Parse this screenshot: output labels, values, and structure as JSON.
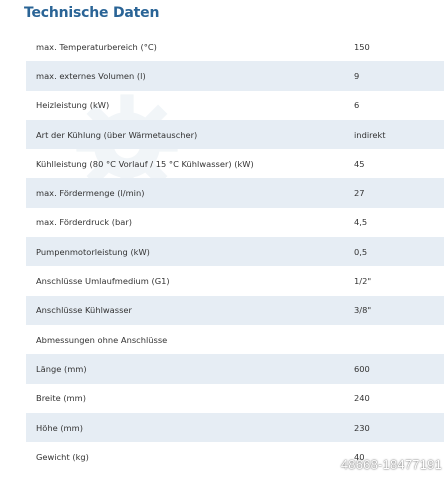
{
  "title": "Technische Daten",
  "rows": [
    {
      "label": "max. Temperaturbereich (°C)",
      "value": "150"
    },
    {
      "label": "max. externes Volumen (l)",
      "value": "9"
    },
    {
      "label": "Heizleistung (kW)",
      "value": "6"
    },
    {
      "label": "Art der Kühlung (über Wärmetauscher)",
      "value": "indirekt"
    },
    {
      "label": "Kühlleistung (80 °C Vorlauf / 15 °C Kühlwasser) (kW)",
      "value": "45"
    },
    {
      "label": "max. Fördermenge (l/min)",
      "value": "27"
    },
    {
      "label": "max. Förderdruck (bar)",
      "value": "4,5"
    },
    {
      "label": "Pumpenmotorleistung (kW)",
      "value": "0,5"
    },
    {
      "label": "Anschlüsse Umlaufmedium (G1)",
      "value": "1/2\""
    },
    {
      "label": "Anschlüsse Kühlwasser",
      "value": "3/8\""
    },
    {
      "label": "Abmessungen ohne Anschlüsse",
      "value": ""
    },
    {
      "label": "Länge (mm)",
      "value": "600"
    },
    {
      "label": "Breite (mm)",
      "value": "240"
    },
    {
      "label": "Höhe (mm)",
      "value": "230"
    },
    {
      "label": "Gewicht (kg)",
      "value": "40"
    }
  ],
  "watermark": {
    "text": "48668-18477191",
    "icon": "gear-icon"
  }
}
